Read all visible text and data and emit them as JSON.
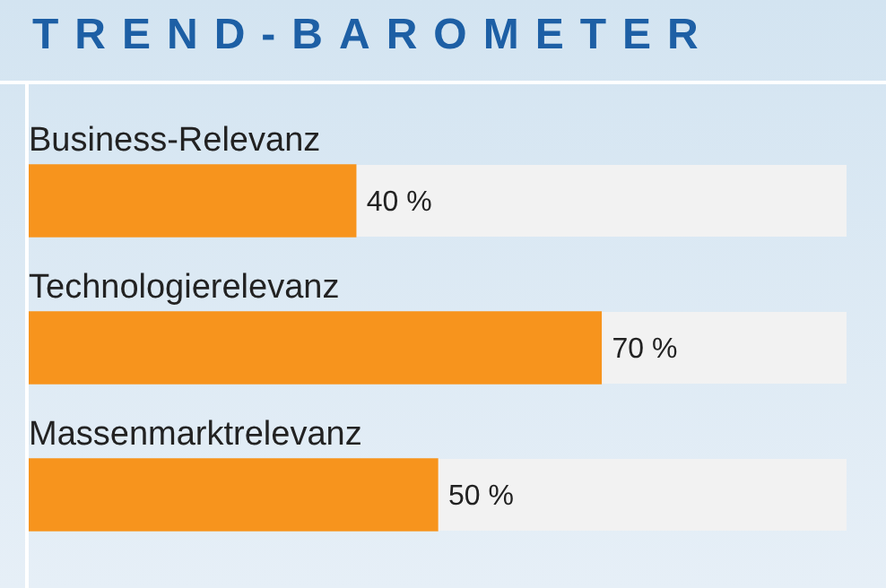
{
  "chart_data": {
    "type": "bar",
    "orientation": "horizontal",
    "title": "TREND-BAROMETER",
    "categories": [
      "Business-Relevanz",
      "Technologierelevanz",
      "Massenmarktrelevanz"
    ],
    "values": [
      40,
      70,
      50
    ],
    "value_labels": [
      "40 %",
      "70 %",
      "50 %"
    ],
    "color": "#f7941d",
    "xlim": [
      0,
      100
    ]
  }
}
